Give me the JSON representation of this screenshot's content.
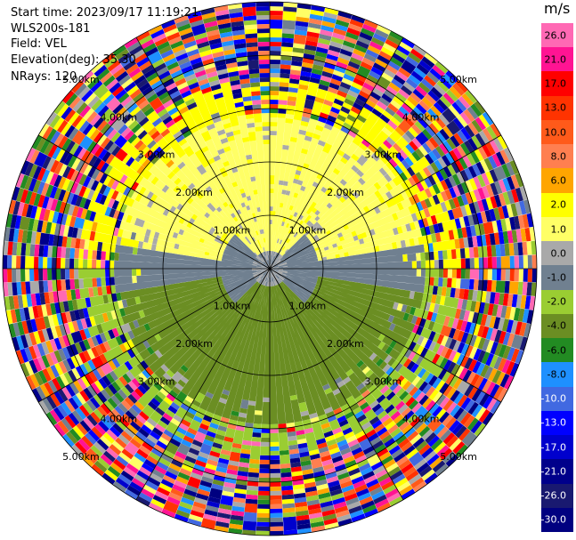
{
  "header": {
    "start_time": "Start time: 2023/09/17 11:19:21",
    "instrument": "WLS200s-181",
    "field": "Field: VEL",
    "elevation": "Elevation(deg): 35.30",
    "nrays": "NRays: 120"
  },
  "colorbar": {
    "unit": "m/s",
    "segments": [
      {
        "label": "26.0",
        "color": "#ff69b4"
      },
      {
        "label": "21.0",
        "color": "#ff1493"
      },
      {
        "label": "17.0",
        "color": "#ff0000"
      },
      {
        "label": "13.0",
        "color": "#ff3300"
      },
      {
        "label": "10.0",
        "color": "#ff5a1a"
      },
      {
        "label": "8.0",
        "color": "#ff7f50"
      },
      {
        "label": "6.0",
        "color": "#ffa500"
      },
      {
        "label": "2.0",
        "color": "#ffff00"
      },
      {
        "label": "1.0",
        "color": "#ffff66"
      },
      {
        "label": "0.0",
        "color": "#a9a9a9"
      },
      {
        "label": "-1.0",
        "color": "#708090"
      },
      {
        "label": "-2.0",
        "color": "#9acd32"
      },
      {
        "label": "-4.0",
        "color": "#6b8e23"
      },
      {
        "label": "-6.0",
        "color": "#228b22"
      },
      {
        "label": "-8.0",
        "color": "#1e90ff"
      },
      {
        "label": "-10.0",
        "color": "#4169e1"
      },
      {
        "label": "-13.0",
        "color": "#0000ff"
      },
      {
        "label": "-17.0",
        "color": "#0000cd"
      },
      {
        "label": "-21.0",
        "color": "#00008b"
      },
      {
        "label": "-26.0",
        "color": "#191970"
      },
      {
        "label": "-30.0",
        "color": "#000080"
      }
    ]
  },
  "chart_data": {
    "type": "heatmap",
    "projection": "polar",
    "field": "VEL",
    "unit": "m/s",
    "nrays": 120,
    "elevation_deg": 35.3,
    "range_rings_km": [
      1.0,
      2.0,
      3.0,
      4.0,
      5.0
    ],
    "ring_labels": [
      "1.00km",
      "2.00km",
      "3.00km",
      "4.00km",
      "5.00km"
    ],
    "max_range_km": 5.0,
    "azimuth_lines_deg": [
      0,
      30,
      60,
      90,
      120,
      150,
      180,
      210,
      240,
      270,
      300,
      330
    ],
    "value_range": [
      -30.0,
      26.0
    ],
    "colorbar_ticks": [
      26.0,
      21.0,
      17.0,
      13.0,
      10.0,
      8.0,
      6.0,
      2.0,
      1.0,
      0.0,
      -1.0,
      -2.0,
      -4.0,
      -6.0,
      -8.0,
      -10.0,
      -13.0,
      -17.0,
      -21.0,
      -26.0,
      -30.0
    ],
    "pattern": {
      "inner_coherent_radius_km": 2.9,
      "north_sector_velocity_ms": 1.5,
      "south_sector_velocity_ms": -3.0,
      "center_velocity_ms": -0.5,
      "outer_field": "noisy (all colors)"
    }
  }
}
